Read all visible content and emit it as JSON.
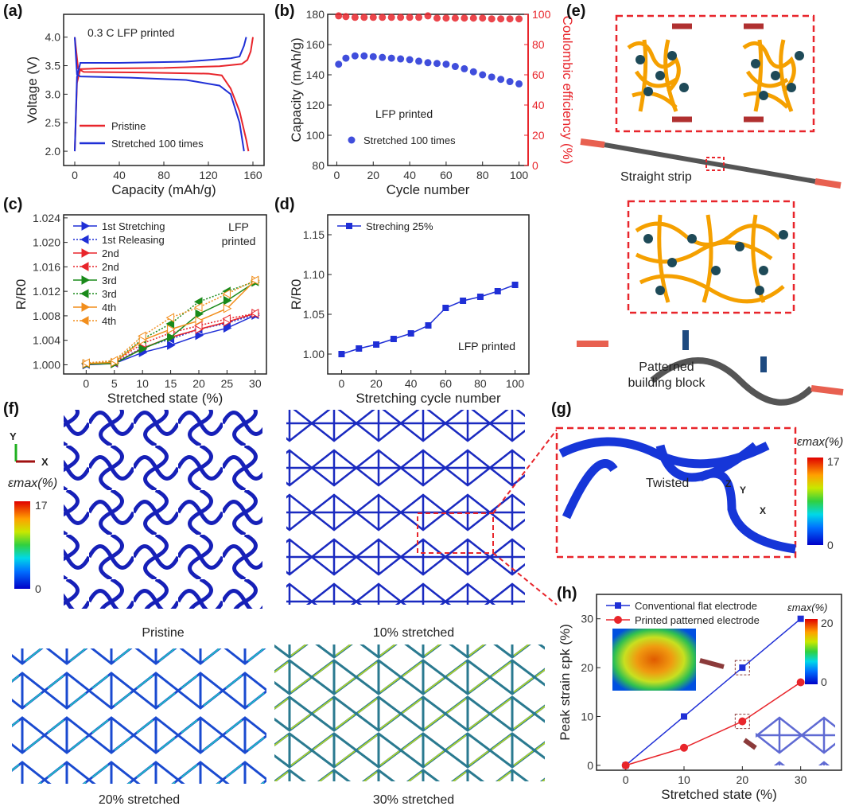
{
  "panel_labels": {
    "a": "(a)",
    "b": "(b)",
    "c": "(c)",
    "d": "(d)",
    "e": "(e)",
    "f": "(f)",
    "g": "(g)",
    "h": "(h)"
  },
  "panel_e": {
    "straight_label": "Straight strip",
    "patterned_label_1": "Patterned",
    "patterned_label_2": "building block"
  },
  "panel_f": {
    "axis_y": "Y",
    "axis_x": "X",
    "scale_title": "εmax(%)",
    "scale_max": "17",
    "scale_min": "0",
    "captions": [
      "Pristine",
      "10% stretched",
      "20% stretched",
      "30% stretched"
    ]
  },
  "panel_g": {
    "annotation": "Twisted",
    "axis_z": "Z",
    "axis_y": "Y",
    "axis_x": "X",
    "scale_title": "εmax(%)",
    "scale_max": "17",
    "scale_min": "0"
  },
  "panel_h_extra": {
    "scale_title": "εmax(%)",
    "scale_max": "20",
    "scale_min": "0"
  },
  "colors": {
    "red": "#e8252b",
    "blue": "#1f2fd6",
    "green": "#1a8a1a",
    "orange": "#f28e1c",
    "dashed_box": "#e8252b"
  },
  "chart_data": [
    {
      "id": "a",
      "type": "line",
      "title": "",
      "annotation": "0.3 C  LFP printed",
      "xlabel": "Capacity (mAh/g)",
      "ylabel": "Voltage (V)",
      "xlim": [
        -10,
        170
      ],
      "ylim": [
        1.75,
        4.4
      ],
      "xticks": [
        0,
        40,
        80,
        120,
        160
      ],
      "yticks": [
        2.0,
        2.5,
        3.0,
        3.5,
        4.0
      ],
      "legend_position": "bottom-left",
      "series": [
        {
          "name": "Pristine",
          "color": "#e8252b",
          "curves": [
            {
              "x": [
                0,
                2,
                5,
                20,
                80,
                130,
                150,
                155,
                158,
                160
              ],
              "y": [
                2.0,
                3.2,
                3.44,
                3.45,
                3.46,
                3.49,
                3.53,
                3.6,
                3.75,
                4.0
              ]
            },
            {
              "x": [
                0,
                3,
                8,
                60,
                120,
                132,
                140,
                148,
                154,
                156
              ],
              "y": [
                4.0,
                3.45,
                3.39,
                3.38,
                3.36,
                3.33,
                3.1,
                2.7,
                2.2,
                2.0
              ]
            }
          ]
        },
        {
          "name": "Stretched 100 times",
          "color": "#1f2fd6",
          "curves": [
            {
              "x": [
                0,
                2,
                5,
                40,
                100,
                140,
                148,
                152,
                154
              ],
              "y": [
                2.0,
                3.3,
                3.55,
                3.55,
                3.57,
                3.63,
                3.66,
                3.85,
                4.0
              ]
            },
            {
              "x": [
                0,
                2,
                5,
                50,
                100,
                130,
                140,
                148,
                152
              ],
              "y": [
                4.0,
                3.35,
                3.31,
                3.29,
                3.25,
                3.15,
                3.0,
                2.5,
                2.0
              ]
            }
          ]
        }
      ]
    },
    {
      "id": "b",
      "type": "scatter",
      "annotation": "LFP printed",
      "xlabel": "Cycle number",
      "ylabel": "Capacity (mAh/g)",
      "ylabel_right": "Coulombic efficiency (%)",
      "xlim": [
        -5,
        105
      ],
      "ylim": [
        80,
        180
      ],
      "ylim_right": [
        0,
        100
      ],
      "xticks": [
        0,
        20,
        40,
        60,
        80,
        100
      ],
      "yticks": [
        80,
        100,
        120,
        140,
        160,
        180
      ],
      "yticks_right": [
        0,
        20,
        40,
        60,
        80,
        100
      ],
      "legend_position": "bottom-left",
      "x": [
        1,
        5,
        10,
        15,
        20,
        25,
        30,
        35,
        40,
        45,
        50,
        55,
        60,
        65,
        70,
        75,
        80,
        85,
        90,
        95,
        100
      ],
      "series": [
        {
          "name": "Stretched 100 times",
          "axis": "left",
          "color": "#1f2fd6",
          "values": [
            147,
            151,
            152.5,
            152.5,
            152,
            151.5,
            151,
            150.5,
            150,
            149,
            148,
            147.5,
            147,
            145.5,
            144,
            142,
            140,
            138.5,
            137,
            135.5,
            134
          ]
        },
        {
          "name": "Coulombic efficiency",
          "axis": "right",
          "color": "#e8252b",
          "values": [
            99,
            98.5,
            98,
            98,
            98,
            98,
            98,
            98,
            98,
            98,
            99,
            97.5,
            97.5,
            97.5,
            97.5,
            97.5,
            97.5,
            97,
            97,
            97,
            97
          ]
        }
      ]
    },
    {
      "id": "c",
      "type": "line",
      "annotation_1": "LFP",
      "annotation_2": "printed",
      "xlabel": "Stretched state (%)",
      "ylabel": "R/R0",
      "xlim": [
        -4,
        32
      ],
      "ylim": [
        0.9985,
        1.0245
      ],
      "xticks": [
        0,
        5,
        10,
        15,
        20,
        25,
        30
      ],
      "yticks": [
        1.0,
        1.004,
        1.008,
        1.012,
        1.016,
        1.02,
        1.024
      ],
      "legend_position": "top-left",
      "x": [
        0,
        5,
        10,
        15,
        20,
        25,
        30
      ],
      "series": [
        {
          "name": "1st Stretching",
          "color": "#1f2fd6",
          "dash": false,
          "marker": "right",
          "values": [
            1.0,
            1.0002,
            1.002,
            1.0032,
            1.0048,
            1.006,
            1.0081
          ]
        },
        {
          "name": "1st Releasing",
          "color": "#1f2fd6",
          "dash": true,
          "marker": "left",
          "values": [
            1.0001,
            1.0003,
            1.0028,
            1.0042,
            1.0058,
            1.0068,
            1.0082
          ]
        },
        {
          "name": "2nd",
          "color": "#e8252b",
          "dash": false,
          "marker": "right",
          "values": [
            1.0001,
            1.0002,
            1.0027,
            1.0045,
            1.0058,
            1.007,
            1.0084
          ]
        },
        {
          "name": "2nd",
          "color": "#e8252b",
          "dash": true,
          "marker": "left",
          "values": [
            1.0002,
            1.0004,
            1.0035,
            1.0052,
            1.0064,
            1.0075,
            1.0084
          ]
        },
        {
          "name": "3rd",
          "color": "#1a8a1a",
          "dash": false,
          "marker": "right",
          "values": [
            1.0001,
            1.0002,
            1.0026,
            1.0045,
            1.0083,
            1.0105,
            1.0135
          ]
        },
        {
          "name": "3rd",
          "color": "#1a8a1a",
          "dash": true,
          "marker": "left",
          "values": [
            1.0002,
            1.0005,
            1.0042,
            1.0067,
            1.0103,
            1.012,
            1.0136
          ]
        },
        {
          "name": "4th",
          "color": "#f28e1c",
          "dash": false,
          "marker": "right",
          "values": [
            1.0002,
            1.0004,
            1.004,
            1.0058,
            1.0072,
            1.0092,
            1.0138
          ]
        },
        {
          "name": "4th",
          "color": "#f28e1c",
          "dash": true,
          "marker": "left",
          "values": [
            1.0003,
            1.0007,
            1.0047,
            1.0077,
            1.0094,
            1.0116,
            1.0138
          ]
        }
      ]
    },
    {
      "id": "d",
      "type": "line",
      "annotation": "LFP printed",
      "xlabel": "Stretching cycle number",
      "ylabel": "R/R0",
      "xlim": [
        -8,
        108
      ],
      "ylim": [
        0.975,
        1.175
      ],
      "xticks": [
        0,
        20,
        40,
        60,
        80,
        100
      ],
      "yticks": [
        1.0,
        1.05,
        1.1,
        1.15
      ],
      "legend_position": "top-left",
      "x": [
        0,
        10,
        20,
        30,
        40,
        50,
        60,
        70,
        80,
        90,
        100
      ],
      "series": [
        {
          "name": "Streching 25%",
          "color": "#1f2fd6",
          "values": [
            1.0,
            1.007,
            1.012,
            1.019,
            1.026,
            1.036,
            1.058,
            1.067,
            1.072,
            1.079,
            1.087
          ]
        }
      ]
    },
    {
      "id": "h",
      "type": "line",
      "xlabel": "Stretched state (%)",
      "ylabel": "Peak strain εpk (%)",
      "xlim": [
        -5,
        37
      ],
      "ylim": [
        -1,
        35
      ],
      "xticks": [
        0,
        10,
        20,
        30
      ],
      "yticks": [
        0,
        10,
        20,
        30
      ],
      "legend_position": "top-left",
      "x": [
        0,
        10,
        20,
        30
      ],
      "series": [
        {
          "name": "Conventional flat electrode",
          "color": "#1f2fd6",
          "marker": "square",
          "values": [
            0,
            10,
            20,
            30
          ]
        },
        {
          "name": "Printed patterned electrode",
          "color": "#e8252b",
          "marker": "circle",
          "values": [
            0,
            3.6,
            9,
            17
          ]
        }
      ]
    }
  ]
}
